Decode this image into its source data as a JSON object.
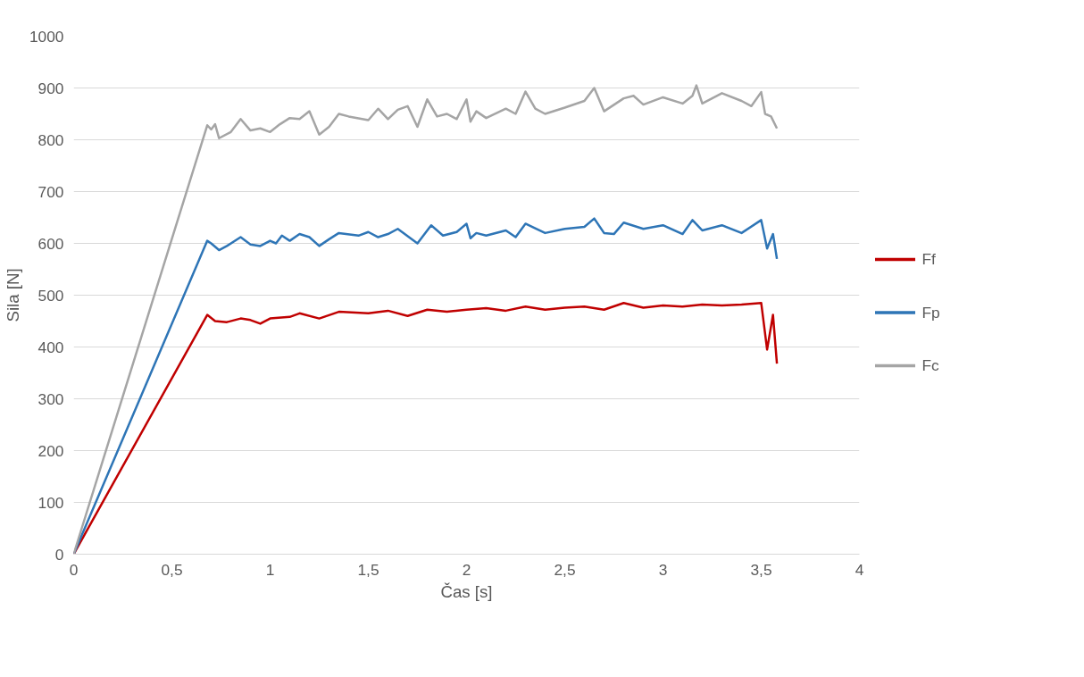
{
  "chart_data": {
    "type": "line",
    "xlabel": "Čas [s]",
    "ylabel": "Sila [N]",
    "xlim": [
      0,
      4
    ],
    "ylim": [
      0,
      1000
    ],
    "xticks": [
      0,
      {
        "value": 0.5,
        "label": "0,5"
      },
      1,
      {
        "value": 1.5,
        "label": "1,5"
      },
      2,
      {
        "value": 2.5,
        "label": "2,5"
      },
      3,
      {
        "value": 3.5,
        "label": "3,5"
      },
      4
    ],
    "yticks": [
      0,
      100,
      200,
      300,
      400,
      500,
      600,
      700,
      800,
      900,
      1000
    ],
    "grid": "y",
    "legend": "right",
    "marker": "none",
    "line_style": "solid",
    "series": [
      {
        "name": "Ff",
        "color": "#c00000",
        "x": [
          0,
          0.68,
          0.72,
          0.78,
          0.85,
          0.9,
          0.95,
          1.0,
          1.1,
          1.15,
          1.25,
          1.35,
          1.5,
          1.6,
          1.7,
          1.8,
          1.9,
          2.0,
          2.1,
          2.2,
          2.3,
          2.4,
          2.5,
          2.6,
          2.7,
          2.8,
          2.9,
          3.0,
          3.1,
          3.2,
          3.3,
          3.4,
          3.5,
          3.53,
          3.56,
          3.58
        ],
        "values": [
          0,
          462,
          450,
          448,
          455,
          452,
          445,
          455,
          458,
          465,
          455,
          468,
          465,
          470,
          460,
          472,
          468,
          472,
          475,
          470,
          478,
          472,
          476,
          478,
          472,
          485,
          476,
          480,
          478,
          482,
          480,
          482,
          485,
          395,
          462,
          368
        ]
      },
      {
        "name": "Fp",
        "color": "#2e75b6",
        "x": [
          0,
          0.68,
          0.7,
          0.74,
          0.78,
          0.85,
          0.9,
          0.95,
          1.0,
          1.03,
          1.06,
          1.1,
          1.15,
          1.2,
          1.25,
          1.3,
          1.35,
          1.45,
          1.5,
          1.55,
          1.6,
          1.65,
          1.75,
          1.82,
          1.88,
          1.95,
          2.0,
          2.02,
          2.05,
          2.1,
          2.2,
          2.25,
          2.3,
          2.4,
          2.5,
          2.6,
          2.65,
          2.7,
          2.75,
          2.8,
          2.9,
          3.0,
          3.1,
          3.15,
          3.2,
          3.3,
          3.4,
          3.5,
          3.53,
          3.56,
          3.58
        ],
        "values": [
          0,
          605,
          600,
          587,
          595,
          612,
          598,
          595,
          605,
          600,
          615,
          605,
          618,
          612,
          595,
          608,
          620,
          615,
          622,
          612,
          618,
          628,
          600,
          635,
          615,
          622,
          638,
          610,
          620,
          615,
          625,
          612,
          638,
          620,
          628,
          632,
          648,
          620,
          618,
          640,
          628,
          635,
          618,
          645,
          625,
          635,
          620,
          645,
          590,
          618,
          570
        ]
      },
      {
        "name": "Fc",
        "color": "#a5a5a5",
        "x": [
          0,
          0.68,
          0.7,
          0.72,
          0.74,
          0.8,
          0.85,
          0.9,
          0.95,
          1.0,
          1.05,
          1.1,
          1.15,
          1.2,
          1.25,
          1.3,
          1.35,
          1.4,
          1.5,
          1.55,
          1.6,
          1.65,
          1.7,
          1.75,
          1.8,
          1.85,
          1.9,
          1.95,
          2.0,
          2.02,
          2.05,
          2.1,
          2.2,
          2.25,
          2.3,
          2.35,
          2.4,
          2.5,
          2.6,
          2.65,
          2.7,
          2.8,
          2.85,
          2.9,
          3.0,
          3.1,
          3.15,
          3.17,
          3.2,
          3.3,
          3.4,
          3.45,
          3.5,
          3.52,
          3.55,
          3.58
        ],
        "values": [
          0,
          828,
          820,
          830,
          803,
          815,
          840,
          818,
          822,
          815,
          830,
          842,
          840,
          855,
          810,
          825,
          850,
          845,
          838,
          860,
          840,
          858,
          865,
          825,
          878,
          845,
          850,
          840,
          878,
          835,
          855,
          842,
          860,
          850,
          893,
          860,
          850,
          862,
          875,
          900,
          855,
          880,
          885,
          868,
          882,
          870,
          885,
          905,
          870,
          890,
          875,
          865,
          892,
          850,
          845,
          822
        ]
      }
    ]
  }
}
